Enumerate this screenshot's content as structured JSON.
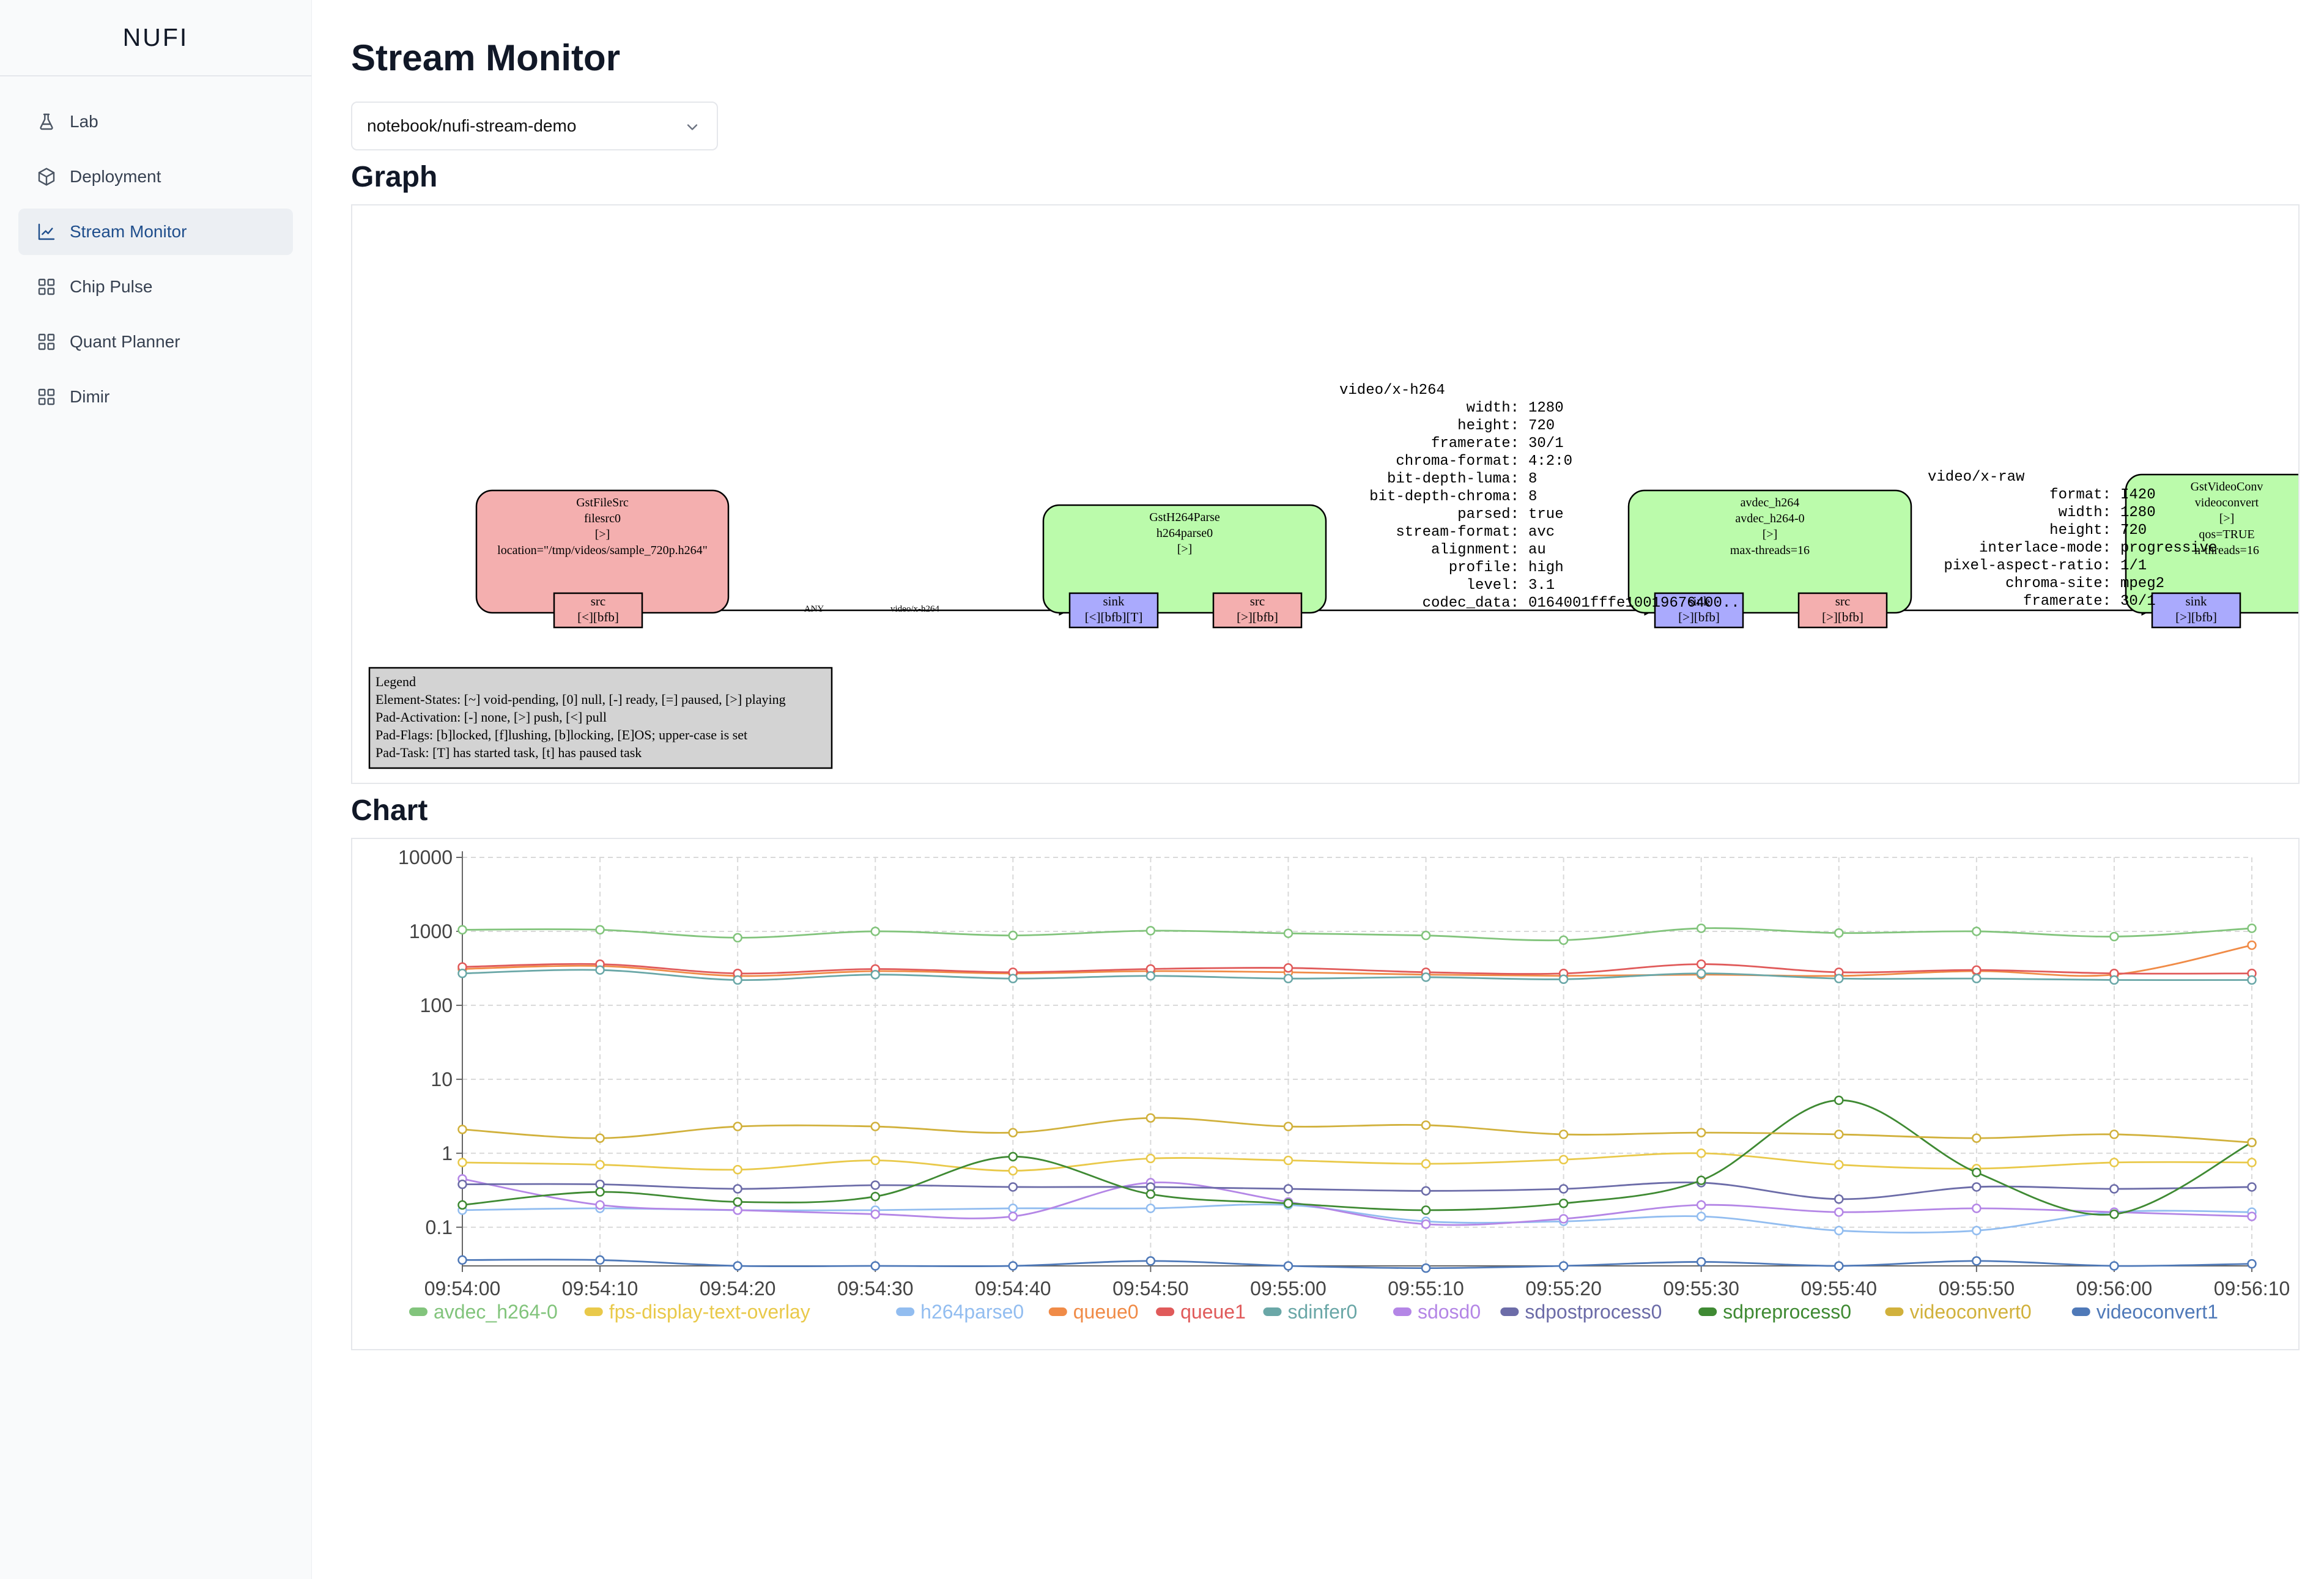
{
  "app": {
    "brand": "NUFI"
  },
  "sidebar": {
    "items": [
      {
        "label": "Lab",
        "icon": "flask-icon",
        "active": false
      },
      {
        "label": "Deployment",
        "icon": "package-icon",
        "active": false
      },
      {
        "label": "Stream Monitor",
        "icon": "line-chart-icon",
        "active": true
      },
      {
        "label": "Chip Pulse",
        "icon": "grid-icon",
        "active": false
      },
      {
        "label": "Quant Planner",
        "icon": "grid-icon",
        "active": false
      },
      {
        "label": "Dimir",
        "icon": "grid-icon",
        "active": false
      }
    ]
  },
  "page": {
    "title": "Stream Monitor",
    "pipeline_select": {
      "value": "notebook/nufi-stream-demo"
    },
    "graph_title": "Graph",
    "chart_title": "Chart"
  },
  "graph": {
    "elements": [
      {
        "id": "filesrc",
        "lines": [
          "GstFileSrc",
          "filesrc0",
          "[>]",
          "location=\"/tmp/videos/sample_720p.h264\""
        ],
        "fill": "#f4afaf",
        "pads": [
          {
            "lines": [
              "src",
              "[<][bfb]"
            ],
            "kind": "src"
          }
        ]
      },
      {
        "id": "h264parse",
        "lines": [
          "GstH264Parse",
          "h264parse0",
          "[>]"
        ],
        "fill": "#bbfbab",
        "pads": [
          {
            "lines": [
              "sink",
              "[<][bfb][T]"
            ],
            "kind": "sink"
          },
          {
            "lines": [
              "src",
              "[>][bfb]"
            ],
            "kind": "src"
          }
        ]
      },
      {
        "id": "avdec",
        "lines": [
          "avdec_h264",
          "avdec_h264-0",
          "[>]",
          "max-threads=16"
        ],
        "fill": "#bbfbab",
        "pads": [
          {
            "lines": [
              "sink",
              "[>][bfb]"
            ],
            "kind": "sink"
          },
          {
            "lines": [
              "src",
              "[>][bfb]"
            ],
            "kind": "src"
          }
        ]
      },
      {
        "id": "videoconvert",
        "lines": [
          "GstVideoConv",
          "videoconvert",
          "[>]",
          "qos=TRUE",
          "n-threads=16"
        ],
        "fill": "#bbfbab",
        "pads": [
          {
            "lines": [
              "sink",
              "[>][bfb]"
            ],
            "kind": "sink"
          }
        ]
      }
    ],
    "edge1_labels": [
      "ANY",
      "video/x-h264"
    ],
    "caps_h264": {
      "header": "video/x-h264",
      "rows": [
        [
          "width:",
          "1280"
        ],
        [
          "height:",
          "720"
        ],
        [
          "framerate:",
          "30/1"
        ],
        [
          "chroma-format:",
          "4:2:0"
        ],
        [
          "bit-depth-luma:",
          "8"
        ],
        [
          "bit-depth-chroma:",
          "8"
        ],
        [
          "parsed:",
          "true"
        ],
        [
          "stream-format:",
          "avc"
        ],
        [
          "alignment:",
          "au"
        ],
        [
          "profile:",
          "high"
        ],
        [
          "level:",
          "3.1"
        ],
        [
          "codec_data:",
          "0164001fffe10019676400.."
        ]
      ]
    },
    "caps_raw": {
      "header": "video/x-raw",
      "rows": [
        [
          "format:",
          "I420"
        ],
        [
          "width:",
          "1280"
        ],
        [
          "height:",
          "720"
        ],
        [
          "interlace-mode:",
          "progressive"
        ],
        [
          "pixel-aspect-ratio:",
          "1/1"
        ],
        [
          "chroma-site:",
          "mpeg2"
        ],
        [
          "framerate:",
          "30/1"
        ]
      ]
    },
    "legend": {
      "lines": [
        "Legend",
        "Element-States: [~] void-pending, [0] null, [-] ready, [=] paused, [>] playing",
        "Pad-Activation: [-] none, [>] push, [<] pull",
        "Pad-Flags: [b]locked, [f]lushing, [b]locking, [E]OS; upper-case is set",
        "Pad-Task: [T] has started task, [t] has paused task"
      ]
    }
  },
  "chart_data": {
    "type": "line",
    "yscale": "log",
    "ylim": [
      0.03,
      10000
    ],
    "yticks": [
      "10000",
      "1000",
      "100",
      "10",
      "1",
      "0.1"
    ],
    "x": [
      "09:54:00",
      "09:54:10",
      "09:54:20",
      "09:54:30",
      "09:54:40",
      "09:54:50",
      "09:55:00",
      "09:55:10",
      "09:55:20",
      "09:55:30",
      "09:55:40",
      "09:55:50",
      "09:56:00",
      "09:56:10"
    ],
    "grid": true,
    "legend_position": "bottom",
    "series": [
      {
        "name": "avdec_h264-0",
        "color": "#82c47c",
        "values": [
          1050,
          1050,
          820,
          1000,
          880,
          1020,
          940,
          880,
          760,
          1100,
          950,
          1000,
          850,
          1100
        ]
      },
      {
        "name": "fps-display-text-overlay",
        "color": "#e9c94a",
        "values": [
          0.75,
          0.7,
          0.6,
          0.8,
          0.58,
          0.85,
          0.8,
          0.72,
          0.82,
          1.0,
          0.7,
          0.62,
          0.75,
          0.75
        ]
      },
      {
        "name": "h264parse0",
        "color": "#92bdf0",
        "values": [
          0.17,
          0.18,
          0.17,
          0.17,
          0.18,
          0.18,
          0.2,
          0.12,
          0.12,
          0.14,
          0.09,
          0.09,
          0.16,
          0.16
        ]
      },
      {
        "name": "queue0",
        "color": "#f08b47",
        "values": [
          310,
          340,
          250,
          290,
          270,
          290,
          280,
          260,
          250,
          260,
          250,
          290,
          260,
          650
        ]
      },
      {
        "name": "queue1",
        "color": "#e05a5a",
        "values": [
          330,
          360,
          270,
          310,
          280,
          310,
          320,
          280,
          270,
          360,
          280,
          300,
          270,
          270
        ]
      },
      {
        "name": "sdinfer0",
        "color": "#6aa7a7",
        "values": [
          270,
          300,
          220,
          260,
          230,
          250,
          230,
          240,
          225,
          270,
          230,
          230,
          220,
          220
        ]
      },
      {
        "name": "sdosd0",
        "color": "#b486e6",
        "values": [
          0.45,
          0.2,
          0.17,
          0.15,
          0.14,
          0.4,
          0.22,
          0.11,
          0.13,
          0.2,
          0.16,
          0.18,
          0.16,
          0.14
        ]
      },
      {
        "name": "sdpostprocess0",
        "color": "#6c6ca8",
        "values": [
          0.38,
          0.38,
          0.33,
          0.37,
          0.35,
          0.35,
          0.33,
          0.31,
          0.33,
          0.4,
          0.24,
          0.35,
          0.33,
          0.35
        ]
      },
      {
        "name": "sdpreprocess0",
        "color": "#3f8a33",
        "values": [
          0.2,
          0.3,
          0.22,
          0.26,
          0.9,
          0.28,
          0.21,
          0.17,
          0.21,
          0.43,
          5.2,
          0.55,
          0.15,
          1.4
        ]
      },
      {
        "name": "videoconvert0",
        "color": "#d1b13c",
        "values": [
          2.1,
          1.6,
          2.3,
          2.3,
          1.9,
          3.0,
          2.3,
          2.4,
          1.8,
          1.9,
          1.8,
          1.6,
          1.8,
          1.4
        ]
      },
      {
        "name": "videoconvert1",
        "color": "#4f79b8",
        "values": [
          0.036,
          0.036,
          0.03,
          0.03,
          0.03,
          0.035,
          0.03,
          0.028,
          0.03,
          0.034,
          0.03,
          0.035,
          0.03,
          0.032
        ]
      }
    ]
  }
}
